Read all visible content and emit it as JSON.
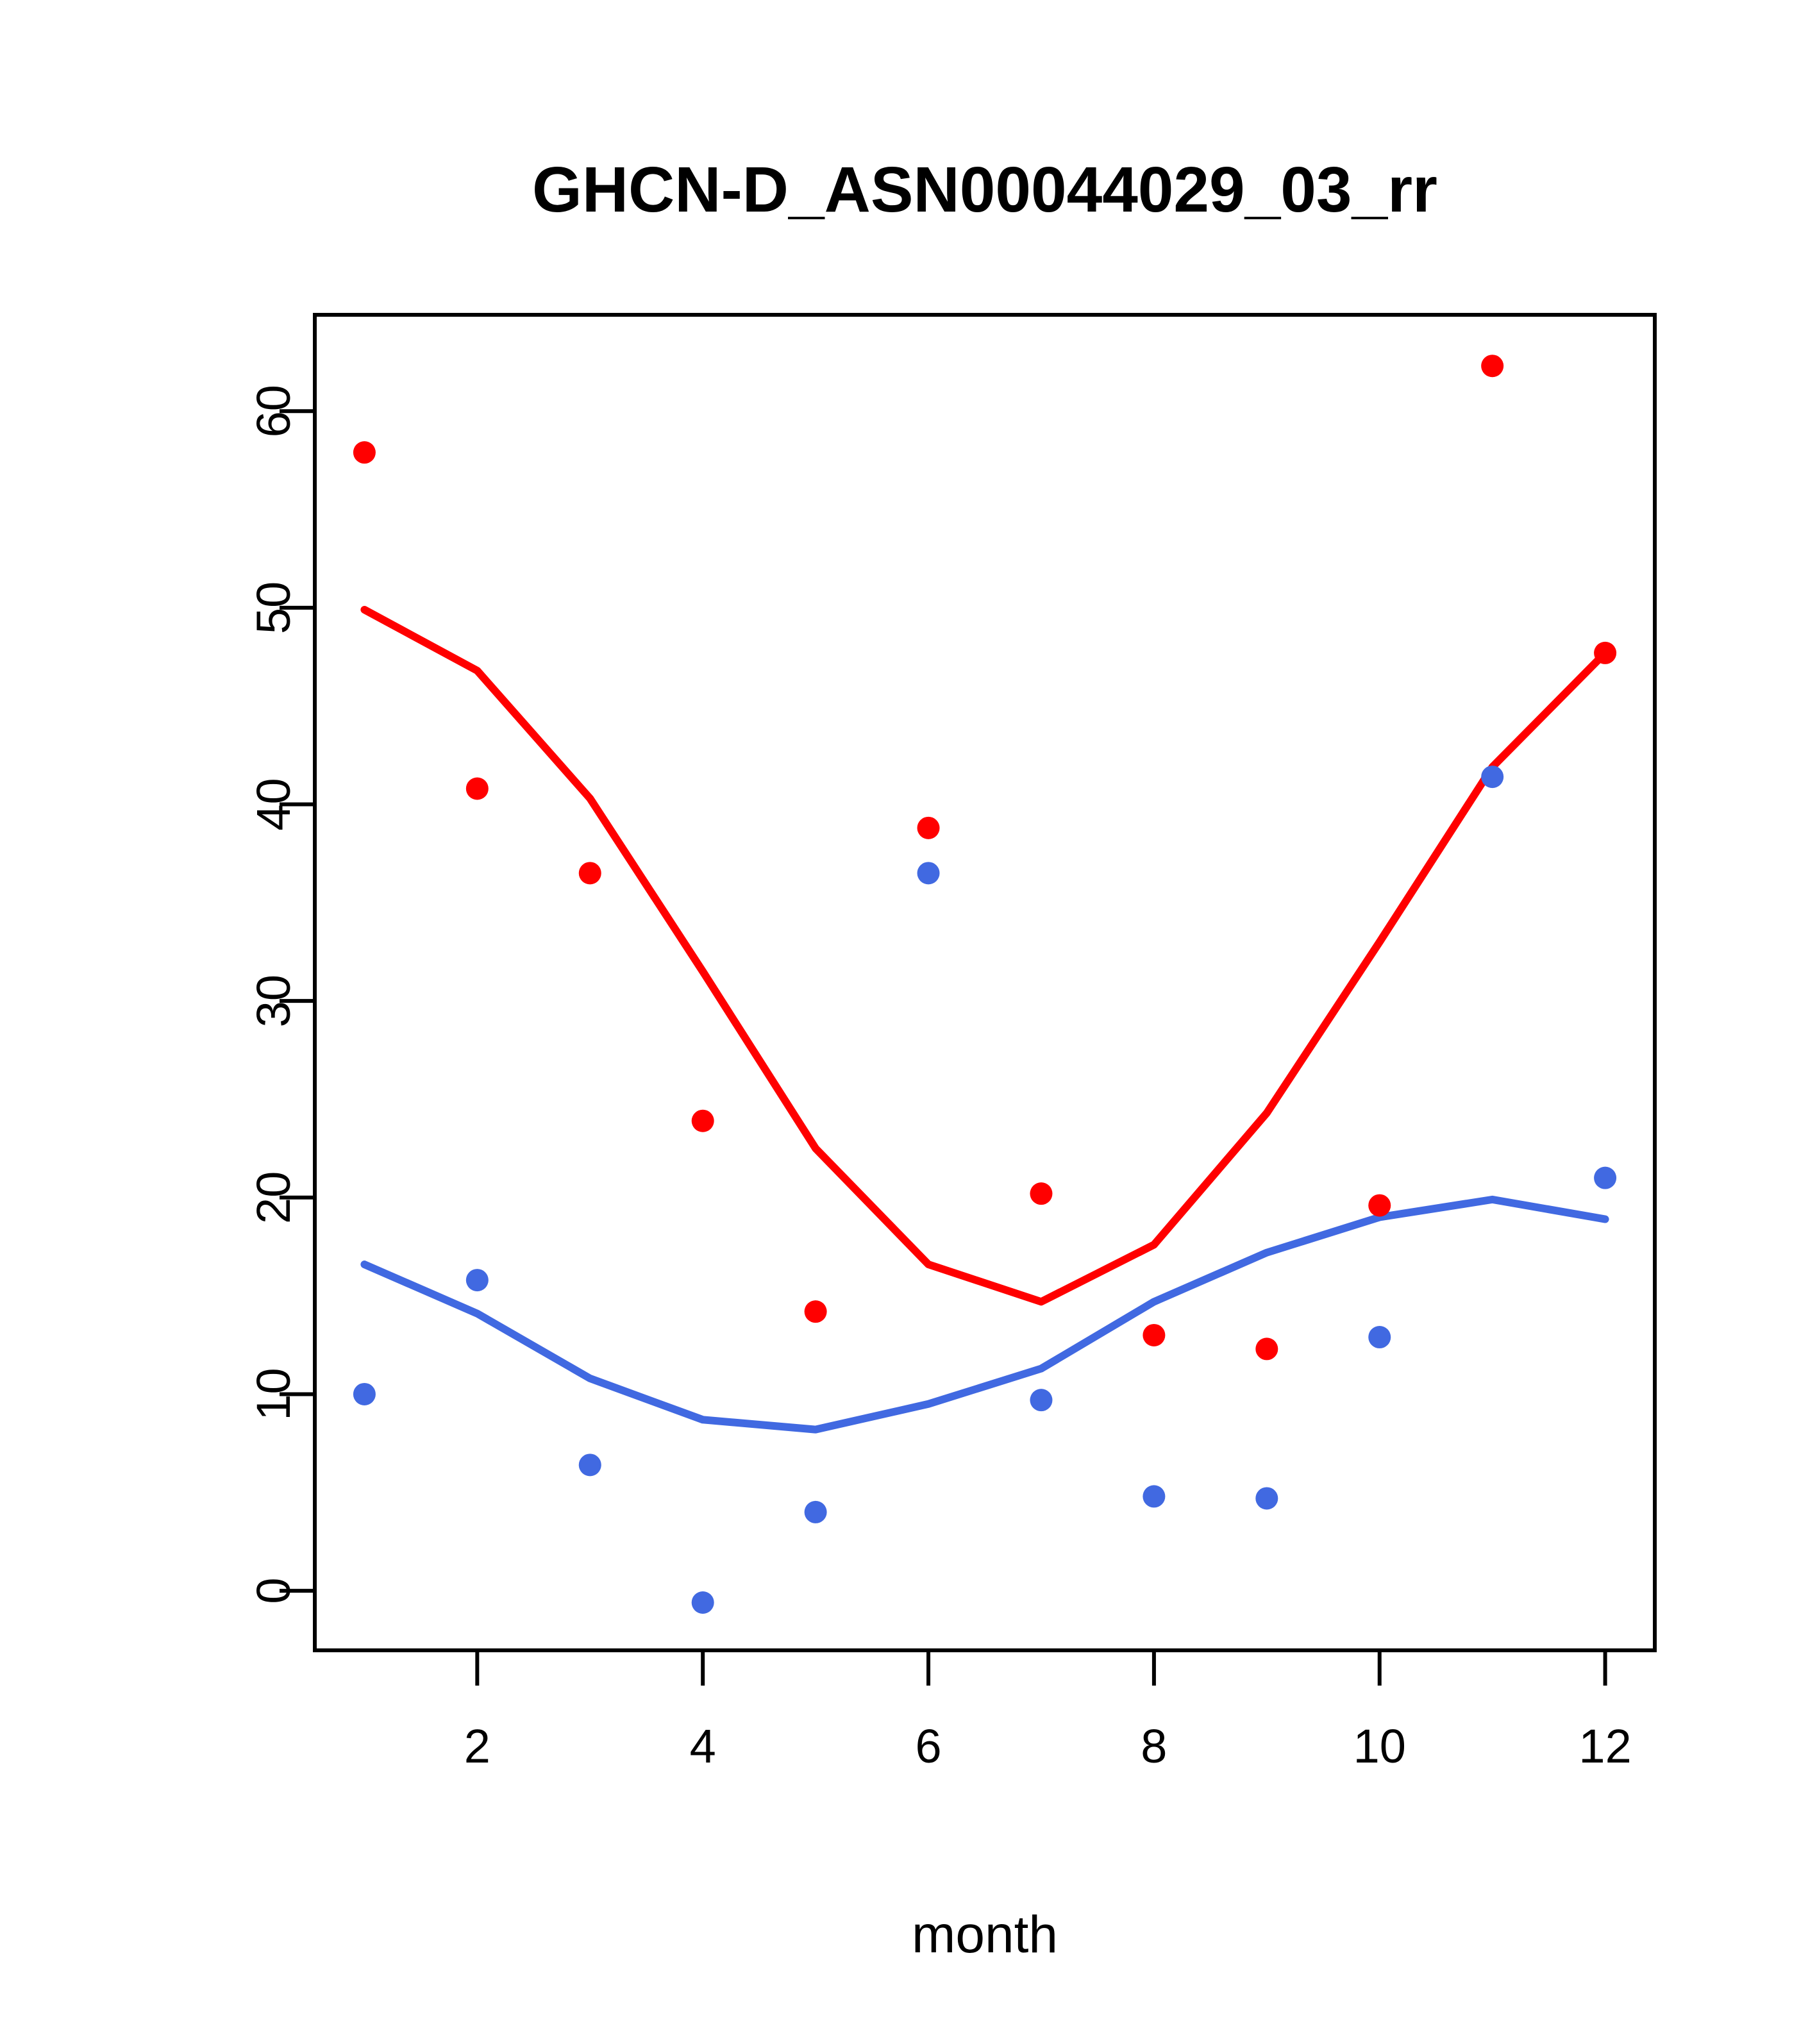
{
  "chart_data": {
    "type": "scatter",
    "title": "GHCN-D_ASN00044029_03_rr",
    "xlabel": "month",
    "ylabel": "",
    "x": [
      1,
      2,
      3,
      4,
      5,
      6,
      7,
      8,
      9,
      10,
      11,
      12
    ],
    "xlim": [
      0.56,
      12.44
    ],
    "ylim": [
      -3.03,
      64.9
    ],
    "x_ticks": [
      "2",
      "4",
      "6",
      "8",
      "10",
      "12"
    ],
    "x_tick_values": [
      2,
      4,
      6,
      8,
      10,
      12
    ],
    "y_ticks": [
      "0",
      "10",
      "20",
      "30",
      "40",
      "50",
      "60"
    ],
    "y_tick_values": [
      0,
      10,
      20,
      30,
      40,
      50,
      60
    ],
    "grid": false,
    "legend": null,
    "colors": {
      "red_series": "#FF0000",
      "blue_series": "#4169E1",
      "axis": "#000000",
      "background": "#FFFFFF"
    },
    "series": [
      {
        "name": "red-points",
        "render": "scatter",
        "color": "#FF0000",
        "values": [
          57.9,
          40.8,
          36.5,
          23.9,
          14.2,
          38.8,
          20.2,
          13.0,
          12.3,
          19.6,
          62.3,
          47.7
        ]
      },
      {
        "name": "blue-points",
        "render": "scatter",
        "color": "#4169E1",
        "values": [
          10.0,
          15.8,
          6.4,
          -0.6,
          4.0,
          36.5,
          9.7,
          4.8,
          4.7,
          12.9,
          41.4,
          21.0
        ]
      },
      {
        "name": "red-loess-line",
        "render": "line",
        "color": "#FF0000",
        "values": [
          49.9,
          46.8,
          40.3,
          31.5,
          22.5,
          16.6,
          14.7,
          17.6,
          24.3,
          33.0,
          41.9,
          47.7
        ]
      },
      {
        "name": "blue-loess-line",
        "render": "line",
        "color": "#4169E1",
        "values": [
          16.6,
          14.1,
          10.8,
          8.7,
          8.2,
          9.5,
          11.3,
          14.7,
          17.2,
          19.0,
          19.9,
          18.9
        ]
      }
    ]
  }
}
